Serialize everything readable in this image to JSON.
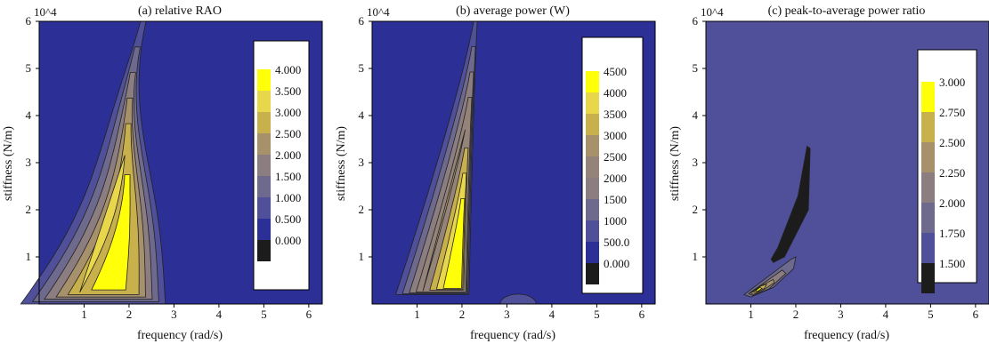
{
  "colors": {
    "background": "#ffffff",
    "frame": "#000000",
    "base_blue": "#2b2f96",
    "text": "#111111"
  },
  "chart_data": [
    {
      "type": "heatmap",
      "title": "(a) relative RAO",
      "xlabel": "frequency (rad/s)",
      "ylabel": "stiffness (N/m)",
      "y_multiplier": "10^4",
      "xlim": [
        0,
        6.3
      ],
      "ylim": [
        0,
        6
      ],
      "x_ticks": [
        1,
        2,
        3,
        4,
        5,
        6
      ],
      "y_ticks": [
        1,
        2,
        3,
        4,
        5,
        6
      ],
      "grid": false,
      "legend": "inside right",
      "levels": [
        "4.000",
        "3.500",
        "3.000",
        "2.500",
        "2.000",
        "1.500",
        "1.000",
        "0.500",
        "0.000"
      ],
      "level_colors": [
        "#ffff0a",
        "#e9d74b",
        "#c8b04d",
        "#a6916b",
        "#8b7d80",
        "#6e6a8e",
        "#4f4f9a",
        "#2b2f96",
        "#1c1c1c"
      ],
      "region_levels": [
        7,
        6,
        5,
        4,
        3,
        2,
        1,
        0
      ],
      "peak": {
        "frequency": 2.2,
        "stiffness": 1.5
      }
    },
    {
      "type": "heatmap",
      "title": "(b) average power (W)",
      "xlabel": "frequency (rad/s)",
      "ylabel": "stiffness (N/m)",
      "y_multiplier": "10^4",
      "xlim": [
        0,
        6.3
      ],
      "ylim": [
        0,
        6
      ],
      "x_ticks": [
        1,
        2,
        3,
        4,
        5,
        6
      ],
      "y_ticks": [
        1,
        2,
        3,
        4,
        5,
        6
      ],
      "grid": false,
      "legend": "inside right",
      "levels": [
        "4500",
        "4000",
        "3500",
        "3000",
        "2500",
        "2000",
        "1500",
        "1000",
        "500.0",
        "0.000"
      ],
      "level_colors": [
        "#ffff0a",
        "#e9d74b",
        "#c8b04d",
        "#a6916b",
        "#948378",
        "#8b7d80",
        "#6e6a8e",
        "#4f4f9a",
        "#2b2f96",
        "#1c1c1c"
      ],
      "region_levels": [
        8,
        7,
        6,
        5,
        4,
        3,
        2,
        1,
        0
      ],
      "peak": {
        "frequency": 2.2,
        "stiffness": 1.0
      }
    },
    {
      "type": "heatmap",
      "title": "(c) peak-to-average power ratio",
      "xlabel": "frequency (rad/s)",
      "ylabel": "stiffness (N/m)",
      "y_multiplier": "10^4",
      "xlim": [
        0,
        6.3
      ],
      "ylim": [
        0,
        6
      ],
      "x_ticks": [
        1,
        2,
        3,
        4,
        5,
        6
      ],
      "y_ticks": [
        1,
        2,
        3,
        4,
        5,
        6
      ],
      "grid": false,
      "legend": "inside right",
      "levels": [
        "3.000",
        "2.750",
        "2.500",
        "2.250",
        "2.000",
        "1.750",
        "1.500"
      ],
      "level_colors": [
        "#ffff0a",
        "#c8b04d",
        "#a6916b",
        "#8b7d80",
        "#6e6a8e",
        "#4f4f9a",
        "#1c1c1c"
      ],
      "background_level": 5,
      "low_band_level": 6,
      "peak": {
        "frequency": 1.2,
        "stiffness": 0.3
      }
    }
  ]
}
